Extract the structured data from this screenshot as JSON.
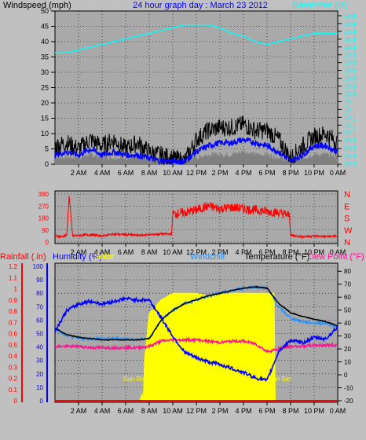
{
  "chart_data": [
    {
      "type": "line",
      "title": "24 hour graph day : March 23 2012",
      "left_label": "Windspeed (mph)",
      "right_label": "Barometer (in)",
      "x_ticks": [
        "2 AM",
        "4 AM",
        "6 AM",
        "8 AM",
        "10 AM",
        "12 PM",
        "2 PM",
        "4 PM",
        "6 PM",
        "8 PM",
        "10 PM",
        "0 AM"
      ],
      "xlim": [
        0,
        24
      ],
      "ylim": [
        0,
        50
      ],
      "y_ticks": [
        0,
        5,
        10,
        15,
        20,
        25,
        30,
        35,
        40,
        45,
        50
      ],
      "y2lim": [
        29.8,
        30.35
      ],
      "y2_ticks": [
        "29.8",
        "29.9",
        "29.9",
        "29.9",
        "29.9",
        "29.9",
        "29.9",
        "29.9",
        "29.9",
        "29.9",
        "29.9",
        "30",
        "30",
        "30.1",
        "30.1",
        "30.1",
        "30.2",
        "30.2",
        "30.3",
        "30.3"
      ],
      "grid": true,
      "colors": {
        "wind_gust": "#000000",
        "wind_avg": "#0000ff",
        "wind_low": "#808080",
        "barometer": "#00ffff",
        "title": "#0000ff"
      },
      "series": [
        {
          "name": "Barometer",
          "axis": "right",
          "x": [
            0,
            1,
            2,
            3,
            4,
            5,
            6,
            7,
            8,
            9,
            10,
            11,
            12,
            13,
            14,
            15,
            16,
            17,
            18,
            19,
            20,
            21,
            22,
            23,
            24
          ],
          "values": [
            30.2,
            30.2,
            30.21,
            30.22,
            30.23,
            30.24,
            30.25,
            30.26,
            30.27,
            30.28,
            30.29,
            30.3,
            30.3,
            30.3,
            30.29,
            30.27,
            30.26,
            30.24,
            30.23,
            30.24,
            30.25,
            30.26,
            30.27,
            30.27,
            30.27
          ]
        },
        {
          "x": [
            0,
            1,
            2,
            3,
            4,
            5,
            6,
            7,
            8,
            9,
            10,
            11,
            12,
            13,
            14,
            15,
            16,
            17,
            18,
            19,
            20,
            21,
            22,
            23,
            24
          ],
          "values": [
            6,
            7,
            5,
            8,
            6,
            8,
            5,
            7,
            4,
            3,
            2,
            1,
            8,
            11,
            12,
            12,
            13,
            11,
            11,
            8,
            2,
            6,
            9,
            10,
            7
          ]
        },
        {
          "x": [
            0,
            1,
            2,
            3,
            4,
            5,
            6,
            7,
            8,
            9,
            10,
            11,
            12,
            13,
            14,
            15,
            16,
            17,
            18,
            19,
            20,
            21,
            22,
            23,
            24
          ],
          "values": [
            3,
            4,
            3,
            5,
            3,
            4,
            3,
            3,
            2,
            1,
            1,
            1,
            4,
            6,
            7,
            7,
            8,
            7,
            6,
            4,
            1,
            3,
            6,
            6,
            4
          ]
        },
        {
          "x": [
            0,
            1,
            2,
            3,
            4,
            5,
            6,
            7,
            8,
            9,
            10,
            11,
            12,
            13,
            14,
            15,
            16,
            17,
            18,
            19,
            20,
            21,
            22,
            23,
            24
          ],
          "values": [
            1,
            1,
            1,
            2,
            1,
            1,
            1,
            1,
            1,
            0,
            0,
            0,
            1,
            2,
            2,
            2,
            3,
            2,
            2,
            1,
            0,
            1,
            2,
            2,
            1
          ]
        }
      ]
    },
    {
      "type": "scatter",
      "x_ticks": [
        "2 AM",
        "4 AM",
        "6 AM",
        "8 AM",
        "10 AM",
        "12 PM",
        "2 PM",
        "4 PM",
        "6 PM",
        "8 PM",
        "10 PM",
        "0 AM"
      ],
      "xlim": [
        0,
        24
      ],
      "ylim": [
        0,
        360
      ],
      "y_ticks": [
        0,
        90,
        180,
        270,
        360
      ],
      "right_labels": [
        "N",
        "W",
        "S",
        "E",
        "N"
      ],
      "grid": true,
      "colors": {
        "direction": "#ff0000",
        "right_labels": "#ff0000"
      },
      "series": [
        {
          "x": [
            0,
            0.5,
            1,
            1.2,
            1.5,
            2,
            3,
            4,
            5,
            6,
            7,
            8,
            9,
            9.9,
            10,
            11,
            12,
            13,
            14,
            15,
            16,
            17,
            18,
            19,
            19.9,
            20,
            21,
            22,
            23,
            24
          ],
          "values": [
            45,
            40,
            50,
            350,
            45,
            50,
            55,
            45,
            60,
            55,
            50,
            55,
            60,
            60,
            210,
            220,
            240,
            270,
            250,
            260,
            250,
            240,
            230,
            220,
            200,
            50,
            40,
            45,
            40,
            45
          ]
        }
      ]
    },
    {
      "type": "line",
      "left_label": "Rainfall (.in)",
      "left2_label": "Humidity (%)",
      "solar_label": "Solar",
      "windchill_label": "Windchill",
      "temperature_label": "Temperature (°F)",
      "dewpoint_label": "Dew Point (°F)",
      "sunrise_label": "Sun Rise",
      "sunset_label": "Sun Set",
      "x_ticks": [
        "2 AM",
        "4 AM",
        "6 AM",
        "8 AM",
        "10 AM",
        "12 PM",
        "2 PM",
        "4 PM",
        "6 PM",
        "8 PM",
        "10 PM",
        "0 AM"
      ],
      "xlim": [
        0,
        24
      ],
      "rain_ticks": [
        "0",
        "0.1",
        "0.2",
        "0.3",
        "0.4",
        "0.5",
        "0.6",
        "0.7",
        "0.8",
        "0.9",
        "1",
        "1.1",
        "1.2"
      ],
      "humidity_ticks": [
        0,
        10,
        20,
        30,
        40,
        50,
        60,
        70,
        80,
        90,
        100
      ],
      "temp_ticks": [
        -20,
        -10,
        0,
        10,
        20,
        30,
        40,
        50,
        60,
        70,
        80
      ],
      "humidity_lim": [
        0,
        100
      ],
      "temp_lim": [
        -20,
        85
      ],
      "grid": true,
      "colors": {
        "rain_axis": "#ff0000",
        "humidity": "#0000ff",
        "temperature": "#000000",
        "windchill": "#1e90ff",
        "dewpoint": "#ff1493",
        "solar": "#ffff00",
        "rain": "#ff0000"
      },
      "solar": {
        "x": [
          7.2,
          7.4,
          7.5,
          7.6,
          8,
          9,
          10,
          11,
          12,
          13,
          14,
          15,
          16,
          17,
          18,
          18.6,
          18.7
        ],
        "values": [
          0,
          5,
          0,
          30,
          65,
          75,
          80,
          80,
          80,
          78,
          79,
          80,
          80,
          80,
          80,
          80,
          0
        ]
      },
      "series": [
        {
          "axis": "right",
          "x": [
            0,
            1,
            2,
            3,
            4,
            5,
            6,
            7,
            8,
            9,
            10,
            11,
            12,
            13,
            14,
            15,
            16,
            17,
            18,
            19,
            20,
            21,
            22,
            23,
            24
          ],
          "values": [
            36,
            31,
            29,
            28,
            27,
            27,
            27,
            27,
            28,
            42,
            50,
            55,
            58,
            61,
            63,
            65,
            67,
            68,
            67,
            55,
            48,
            45,
            43,
            41,
            38
          ]
        },
        {
          "axis": "right",
          "x": [
            0,
            1,
            2,
            3,
            4,
            5,
            6,
            7,
            8,
            9,
            10,
            11,
            12,
            13,
            14,
            15,
            16,
            17,
            18,
            19,
            20,
            21,
            22,
            23,
            24
          ],
          "values": [
            36,
            30,
            28,
            28,
            28,
            28,
            28,
            27,
            28,
            42,
            50,
            55,
            58,
            61,
            63,
            65,
            67,
            68,
            67,
            52,
            44,
            41,
            40,
            40,
            37
          ]
        },
        {
          "axis": "right",
          "x": [
            0,
            1,
            2,
            3,
            4,
            5,
            6,
            7,
            8,
            9,
            10,
            11,
            12,
            13,
            14,
            15,
            16,
            17,
            18,
            19,
            20,
            21,
            22,
            23,
            24
          ],
          "values": [
            22,
            22,
            22,
            21,
            21,
            21,
            21,
            21,
            22,
            26,
            27,
            27,
            27,
            26,
            25,
            26,
            26,
            24,
            18,
            20,
            22,
            22,
            23,
            23,
            23
          ]
        },
        {
          "axis": "left",
          "x": [
            0,
            1,
            2,
            3,
            4,
            5,
            6,
            7,
            8,
            9,
            10,
            11,
            12,
            13,
            14,
            15,
            16,
            17,
            18,
            19,
            20,
            21,
            22,
            23,
            24
          ],
          "values": [
            52,
            67,
            72,
            74,
            72,
            74,
            76,
            75,
            75,
            62,
            48,
            36,
            32,
            29,
            27,
            24,
            21,
            17,
            15,
            37,
            45,
            43,
            47,
            46,
            55
          ]
        }
      ],
      "rain_series": {
        "x": [
          0,
          24
        ],
        "values": [
          0,
          0
        ]
      }
    }
  ]
}
